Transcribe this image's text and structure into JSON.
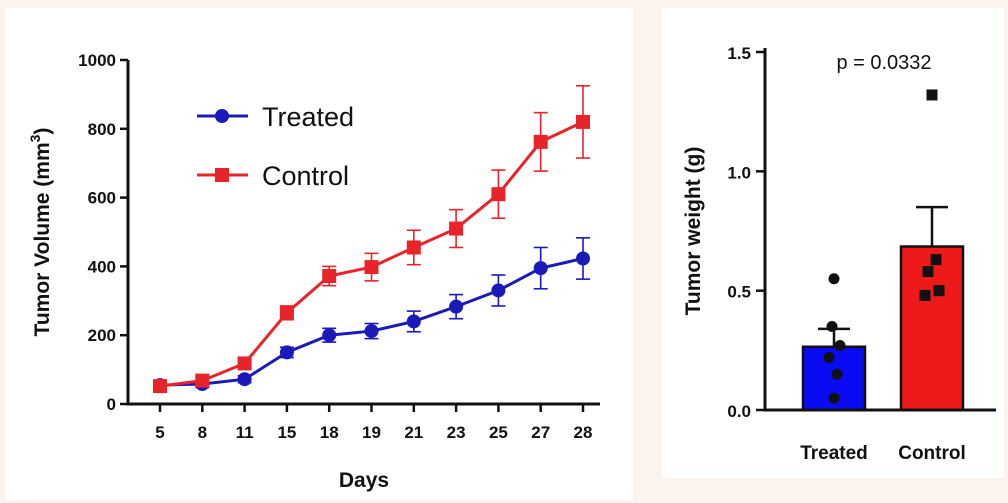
{
  "chart_data": [
    {
      "type": "line",
      "xlabel": "Days",
      "ylabel": "Tumor Volume (mm",
      "ylabel_sup": "3",
      "ylabel_end": ")",
      "categories": [
        "5",
        "8",
        "11",
        "15",
        "18",
        "19",
        "21",
        "23",
        "25",
        "27",
        "28"
      ],
      "ylim": [
        0,
        1000
      ],
      "yticks": [
        "0",
        "200",
        "400",
        "600",
        "800",
        "1000"
      ],
      "legend_position": "top-left",
      "grid": false,
      "series": [
        {
          "name": "Treated",
          "color": "#1a1ab8",
          "marker": "circle",
          "values": [
            55,
            58,
            72,
            150,
            200,
            212,
            240,
            283,
            330,
            395,
            423
          ],
          "errors": [
            10,
            10,
            10,
            15,
            20,
            22,
            30,
            35,
            45,
            60,
            60
          ]
        },
        {
          "name": "Control",
          "color": "#e8242a",
          "marker": "square",
          "values": [
            52,
            68,
            118,
            265,
            372,
            398,
            455,
            510,
            610,
            762,
            820
          ],
          "errors": [
            12,
            12,
            15,
            20,
            28,
            40,
            50,
            55,
            70,
            85,
            105
          ]
        }
      ]
    },
    {
      "type": "bar",
      "ylabel": "Tumor weight (g)",
      "categories": [
        "Treated",
        "Control"
      ],
      "values": [
        0.265,
        0.685
      ],
      "errors": [
        0.075,
        0.165
      ],
      "colors": [
        "#0a0af5",
        "#ee1a1a"
      ],
      "ylim": [
        0,
        1.5
      ],
      "yticks": [
        "0.0",
        "0.5",
        "1.0",
        "1.5"
      ],
      "annotation": "p = 0.0332",
      "grid": false,
      "points": [
        {
          "group": "Treated",
          "marker": "circle",
          "values": [
            0.55,
            0.35,
            0.27,
            0.22,
            0.15,
            0.05
          ]
        },
        {
          "group": "Control",
          "marker": "square",
          "values": [
            1.32,
            0.63,
            0.58,
            0.5,
            0.48
          ]
        }
      ]
    }
  ]
}
